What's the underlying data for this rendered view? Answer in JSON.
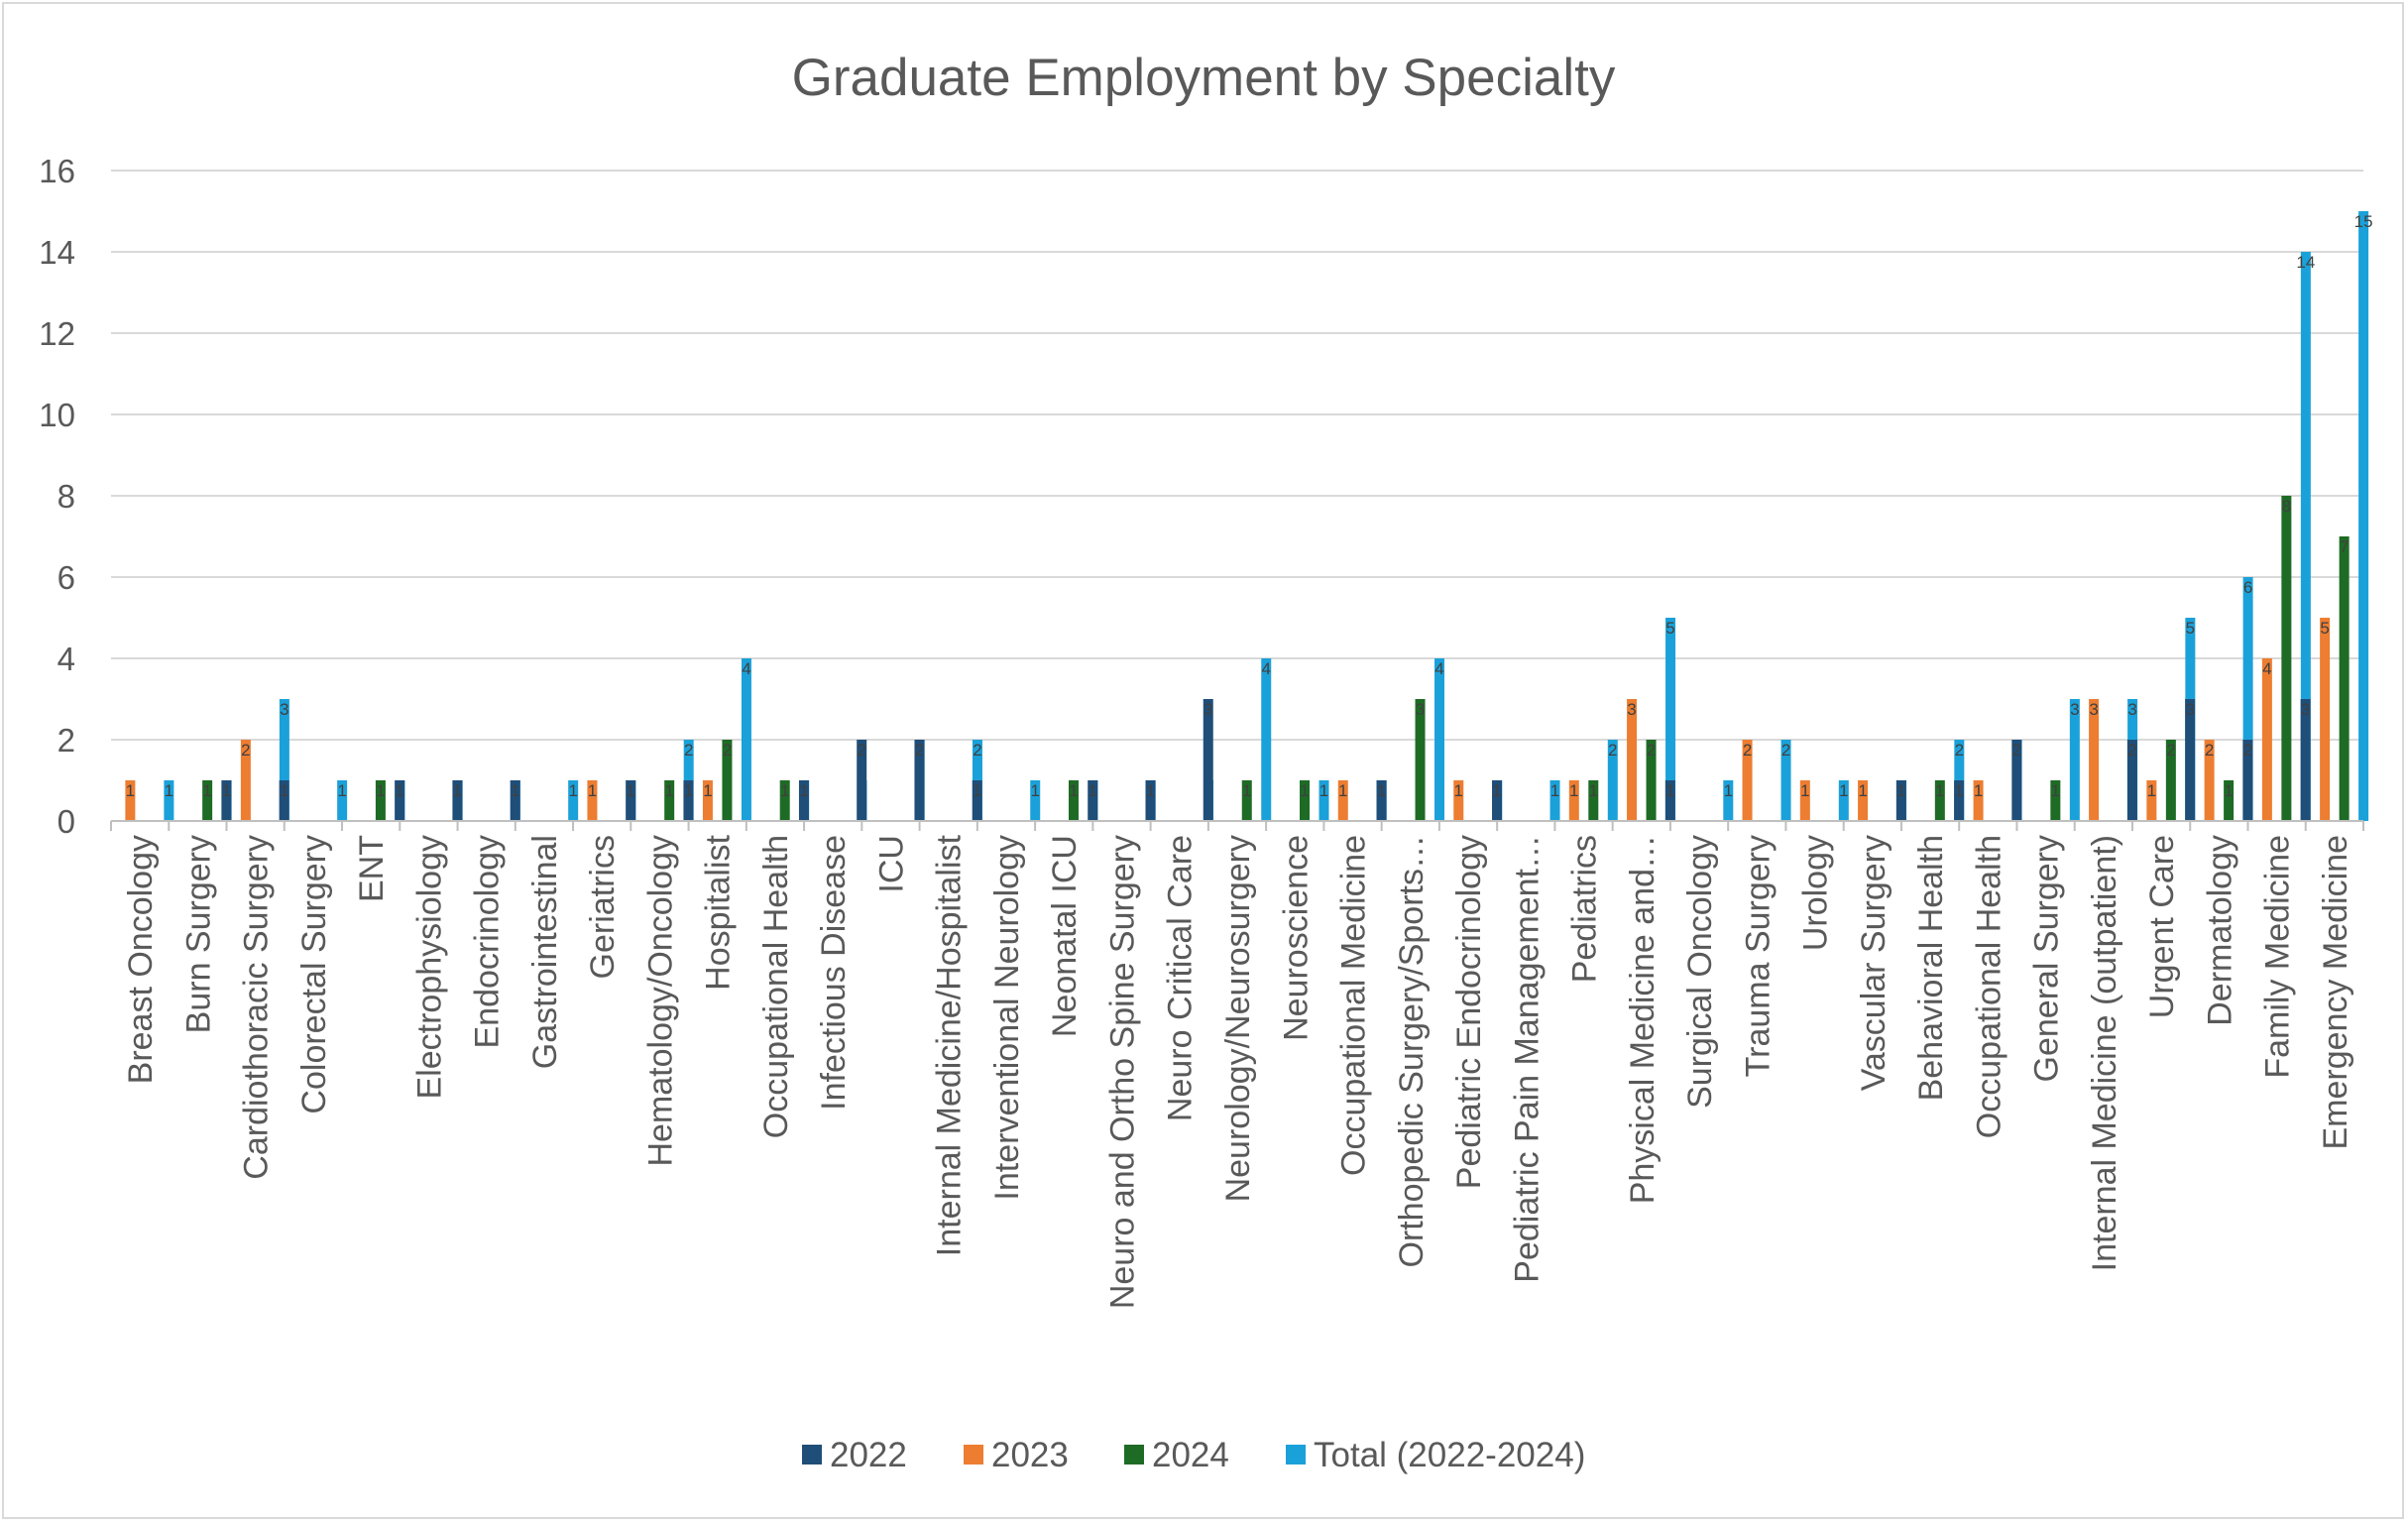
{
  "chart_data": {
    "type": "bar",
    "title": "Graduate Employment by Specialty",
    "xlabel": "",
    "ylabel": "",
    "ylim": [
      0,
      16
    ],
    "yticks": [
      0,
      2,
      4,
      6,
      8,
      10,
      12,
      14,
      16
    ],
    "grid": true,
    "legend_position": "bottom",
    "categories": [
      "Breast Oncology",
      "Burn Surgery",
      "Cardiothoracic Surgery",
      "Colorectal Surgery",
      "ENT",
      "Electrophysiology",
      "Endocrinology",
      "Gastrointestinal",
      "Geriatrics",
      "Hematology/Oncology",
      "Hospitalist",
      "Occupational Health",
      "Infectious Disease",
      "ICU",
      "Internal Medicine/Hospitalist",
      "Interventional Neurology",
      "Neonatal ICU",
      "Neuro and Ortho Spine Surgery",
      "Neuro Critical Care",
      "Neurology/Neurosurgery",
      "Neuroscience",
      "Occupational Medicine",
      "Orthopedic Surgery/Sports…",
      "Pediatric Endocrinology",
      "Pediatric Pain Management…",
      "Pediatrics",
      "Physical Medicine and…",
      "Surgical Oncology",
      "Trauma Surgery",
      "Urology",
      "Vascular Surgery",
      "Behavioral Health",
      "Occupational Health",
      "General Surgery",
      "Internal Medicine (outpatient)",
      "Urgent Care",
      "Dermatology",
      "Family Medicine",
      "Emergency Medicine"
    ],
    "series": [
      {
        "name": "2022",
        "color": "#1f4e79",
        "values": [
          null,
          null,
          1,
          1,
          null,
          1,
          1,
          1,
          null,
          1,
          1,
          null,
          1,
          2,
          2,
          1,
          null,
          1,
          1,
          3,
          null,
          null,
          1,
          null,
          1,
          null,
          null,
          1,
          null,
          null,
          null,
          1,
          1,
          2,
          null,
          2,
          3,
          2,
          3
        ]
      },
      {
        "name": "2023",
        "color": "#ed7d31",
        "values": [
          1,
          null,
          2,
          null,
          null,
          null,
          null,
          null,
          1,
          null,
          1,
          null,
          null,
          null,
          null,
          null,
          null,
          null,
          null,
          null,
          null,
          1,
          null,
          1,
          null,
          1,
          3,
          null,
          2,
          1,
          1,
          null,
          1,
          null,
          3,
          1,
          2,
          4,
          5
        ]
      },
      {
        "name": "2024",
        "color": "#1e6b25",
        "values": [
          null,
          1,
          null,
          null,
          1,
          null,
          null,
          null,
          null,
          1,
          2,
          1,
          null,
          null,
          null,
          null,
          1,
          null,
          null,
          1,
          1,
          null,
          3,
          null,
          null,
          1,
          2,
          null,
          null,
          null,
          null,
          1,
          null,
          1,
          null,
          2,
          1,
          8,
          7
        ]
      },
      {
        "name": "Total (2022-2024)",
        "color": "#1ba1d9",
        "values": [
          1,
          1,
          3,
          1,
          1,
          1,
          1,
          1,
          1,
          2,
          4,
          1,
          1,
          2,
          2,
          1,
          1,
          1,
          1,
          4,
          1,
          1,
          4,
          1,
          1,
          2,
          5,
          1,
          2,
          1,
          1,
          2,
          2,
          3,
          3,
          5,
          6,
          14,
          15
        ]
      }
    ]
  }
}
